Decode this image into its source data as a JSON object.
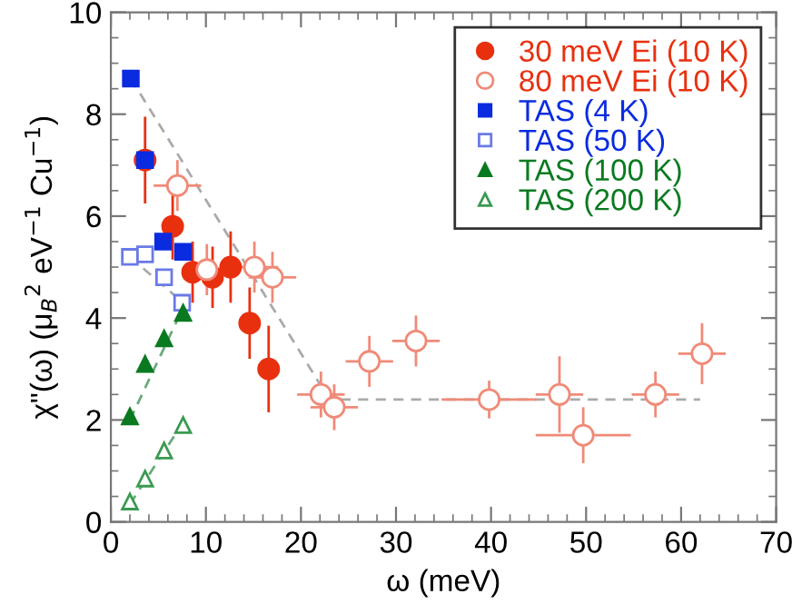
{
  "chart_data": {
    "type": "scatter",
    "xlabel": "ω (meV)",
    "ylabel": "χ\"(ω) (μ$_{B}$$^{2}$ eV$^{−1}$ Cu$^{−1}$)",
    "xlim": [
      0,
      70
    ],
    "ylim": [
      0,
      10
    ],
    "xticks": [
      0,
      10,
      20,
      30,
      40,
      50,
      60,
      70
    ],
    "yticks": [
      0,
      2,
      4,
      6,
      8,
      10
    ],
    "legend": "top right",
    "grid": false,
    "series": [
      {
        "type": "line",
        "line_style": "dashed",
        "marker": "none",
        "color": "#aaaaaa",
        "x": [
          2.1,
          23,
          62
        ],
        "values": [
          8.7,
          2.4,
          2.4
        ]
      },
      {
        "type": "line",
        "line_style": "dashed",
        "marker": "none",
        "color": "#aaaaaa",
        "x": [
          2.0,
          7.6
        ],
        "values": [
          5.2,
          4.3
        ]
      },
      {
        "type": "line",
        "line_style": "dashed",
        "marker": "none",
        "color": "#6aaa7a",
        "x": [
          2.0,
          7.6
        ],
        "values": [
          2.0,
          4.2
        ]
      },
      {
        "type": "line",
        "line_style": "dashed",
        "marker": "none",
        "color": "#6aaa7a",
        "x": [
          2.0,
          7.6
        ],
        "values": [
          0.35,
          1.95
        ]
      },
      {
        "name": "30 meV Ei (10 K)",
        "marker": "circle",
        "color": "#e8300f",
        "x": [
          3.6,
          6.5,
          8.6,
          10.7,
          12.6,
          14.6,
          16.6
        ],
        "values": [
          7.1,
          5.8,
          4.9,
          4.8,
          5.0,
          3.9,
          3.0
        ],
        "errors": [
          0.85,
          0.65,
          0.6,
          0.6,
          0.7,
          0.7,
          0.85
        ]
      },
      {
        "name": "80 meV Ei (10 K)",
        "marker": "circle",
        "color": "#f08a78",
        "x": [
          7.0,
          10.1,
          15.1,
          17.0,
          22.1,
          23.5,
          27.2,
          32.1,
          39.8,
          47.2,
          49.7,
          57.3,
          62.2
        ],
        "values": [
          6.6,
          4.95,
          5.0,
          4.8,
          2.5,
          2.25,
          3.15,
          3.55,
          2.4,
          2.5,
          1.7,
          2.5,
          3.3
        ],
        "errors": [
          0.5,
          0.5,
          0.5,
          0.5,
          0.45,
          0.45,
          0.5,
          0.5,
          0.37,
          0.75,
          0.55,
          0.45,
          0.6
        ],
        "xerrors": [
          2.5,
          2.5,
          2.5,
          2.5,
          2.5,
          2.5,
          2.5,
          2.5,
          5,
          2.5,
          5,
          2.5,
          2.5
        ]
      },
      {
        "name": "TAS (4 K)",
        "marker": "square",
        "color": "#0a2be0",
        "x": [
          2.1,
          3.6,
          5.5,
          7.6
        ],
        "values": [
          8.7,
          7.1,
          5.5,
          5.3
        ]
      },
      {
        "name": "TAS (50 K)",
        "marker": "square",
        "color": "#6a7ae8",
        "x": [
          2.0,
          3.6,
          5.6,
          7.5
        ],
        "values": [
          5.2,
          5.25,
          4.8,
          4.3
        ]
      },
      {
        "name": "TAS (100 K)",
        "marker": "triangle",
        "color": "#0a7a20",
        "x": [
          2.0,
          3.6,
          5.6,
          7.6
        ],
        "values": [
          2.07,
          3.1,
          3.6,
          4.1
        ]
      },
      {
        "name": "TAS (200 K)",
        "marker": "triangle",
        "color": "#3a9a50",
        "x": [
          2.0,
          3.6,
          5.6,
          7.6
        ],
        "values": [
          0.4,
          0.85,
          1.4,
          1.9
        ]
      }
    ]
  }
}
